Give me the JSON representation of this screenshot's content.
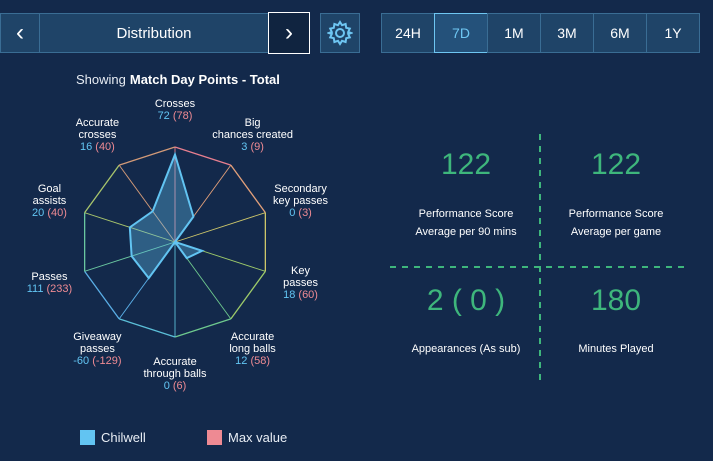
{
  "nav": {
    "prev_icon": "chevron-left-icon",
    "title": "Distribution",
    "next_icon": "chevron-right-icon",
    "settings_icon": "gear-icon",
    "prev_glyph": "‹",
    "next_glyph": "›"
  },
  "time_ranges": {
    "active": "7D",
    "items": [
      "24H",
      "7D",
      "1M",
      "3M",
      "6M",
      "1Y"
    ]
  },
  "showing": {
    "prefix": "Showing",
    "title": "Match Day Points - Total"
  },
  "radar": {
    "axes": [
      {
        "name": "Crosses",
        "l1": "Crosses",
        "l2": "",
        "value": "72",
        "max": "(78)"
      },
      {
        "name": "Big chances created",
        "l1": "Big",
        "l2": "chances created",
        "value": "3",
        "max": "(9)"
      },
      {
        "name": "Secondary key passes",
        "l1": "Secondary",
        "l2": "key passes",
        "value": "0",
        "max": "(3)"
      },
      {
        "name": "Key passes",
        "l1": "Key",
        "l2": "passes",
        "value": "18",
        "max": "(60)"
      },
      {
        "name": "Accurate long balls",
        "l1": "Accurate",
        "l2": "long balls",
        "value": "12",
        "max": "(58)"
      },
      {
        "name": "Accurate through balls",
        "l1": "Accurate",
        "l2": "through balls",
        "value": "0",
        "max": "(6)"
      },
      {
        "name": "Giveaway passes",
        "l1": "Giveaway",
        "l2": "passes",
        "value": "-60",
        "max": "(-129)"
      },
      {
        "name": "Passes",
        "l1": "Passes",
        "l2": "",
        "value": "111",
        "max": "(233)"
      },
      {
        "name": "Goal assists",
        "l1": "Goal",
        "l2": "assists",
        "value": "20",
        "max": "(40)"
      },
      {
        "name": "Accurate crosses",
        "l1": "Accurate",
        "l2": "crosses",
        "value": "16",
        "max": "(40)"
      }
    ],
    "ratios": [
      0.92,
      0.33,
      0.0,
      0.3,
      0.21,
      0.0,
      0.47,
      0.48,
      0.5,
      0.4
    ]
  },
  "legend": {
    "player": "Chilwell",
    "max": "Max value"
  },
  "colors": {
    "player": "#62c4f2",
    "max": "#ee8a93",
    "stat": "#3eb67c"
  },
  "stats": [
    {
      "value": "122",
      "label1": "Performance Score",
      "label2": "Average per 90 mins"
    },
    {
      "value": "122",
      "label1": "Performance Score",
      "label2": "Average per game"
    },
    {
      "value": "2 ( 0 )",
      "label1": "Appearances (As sub)",
      "label2": ""
    },
    {
      "value": "180",
      "label1": "Minutes Played",
      "label2": ""
    }
  ]
}
